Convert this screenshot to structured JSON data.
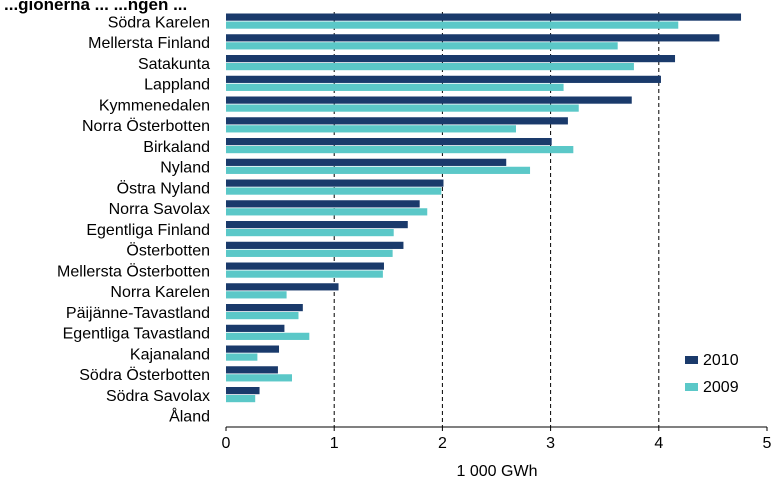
{
  "chart_data": {
    "type": "bar",
    "orientation": "horizontal",
    "title": "...gionerna ... ...ngen ...",
    "xlabel": "1 000 GWh",
    "ylabel": "",
    "xlim": [
      0,
      5
    ],
    "xticks": [
      0,
      1,
      2,
      3,
      4,
      5
    ],
    "grid": "vertical dashed",
    "legend_position": "bottom-right",
    "categories": [
      "Södra Karelen",
      "Mellersta Finland",
      "Satakunta",
      "Lappland",
      "Kymmenedalen",
      "Norra Österbotten",
      "Birkaland",
      "Nyland",
      "Östra Nyland",
      "Norra Savolax",
      "Egentliga Finland",
      "Österbotten",
      "Mellersta Österbotten",
      "Norra Karelen",
      "Päijänne-Tavastland",
      "Egentliga Tavastland",
      "Kajanaland",
      "Södra Österbotten",
      "Södra Savolax",
      "Åland"
    ],
    "series": [
      {
        "name": "2010",
        "color": "#1a3a6b",
        "values": [
          4.76,
          4.56,
          4.15,
          4.02,
          3.75,
          3.16,
          3.01,
          2.59,
          2.01,
          1.79,
          1.68,
          1.64,
          1.46,
          1.04,
          0.71,
          0.54,
          0.49,
          0.48,
          0.31,
          0.0
        ]
      },
      {
        "name": "2009",
        "color": "#5bc8c8",
        "values": [
          4.18,
          3.62,
          3.77,
          3.12,
          3.26,
          2.68,
          3.21,
          2.81,
          1.99,
          1.86,
          1.55,
          1.54,
          1.45,
          0.56,
          0.67,
          0.77,
          0.29,
          0.61,
          0.27,
          0.0
        ]
      }
    ]
  }
}
